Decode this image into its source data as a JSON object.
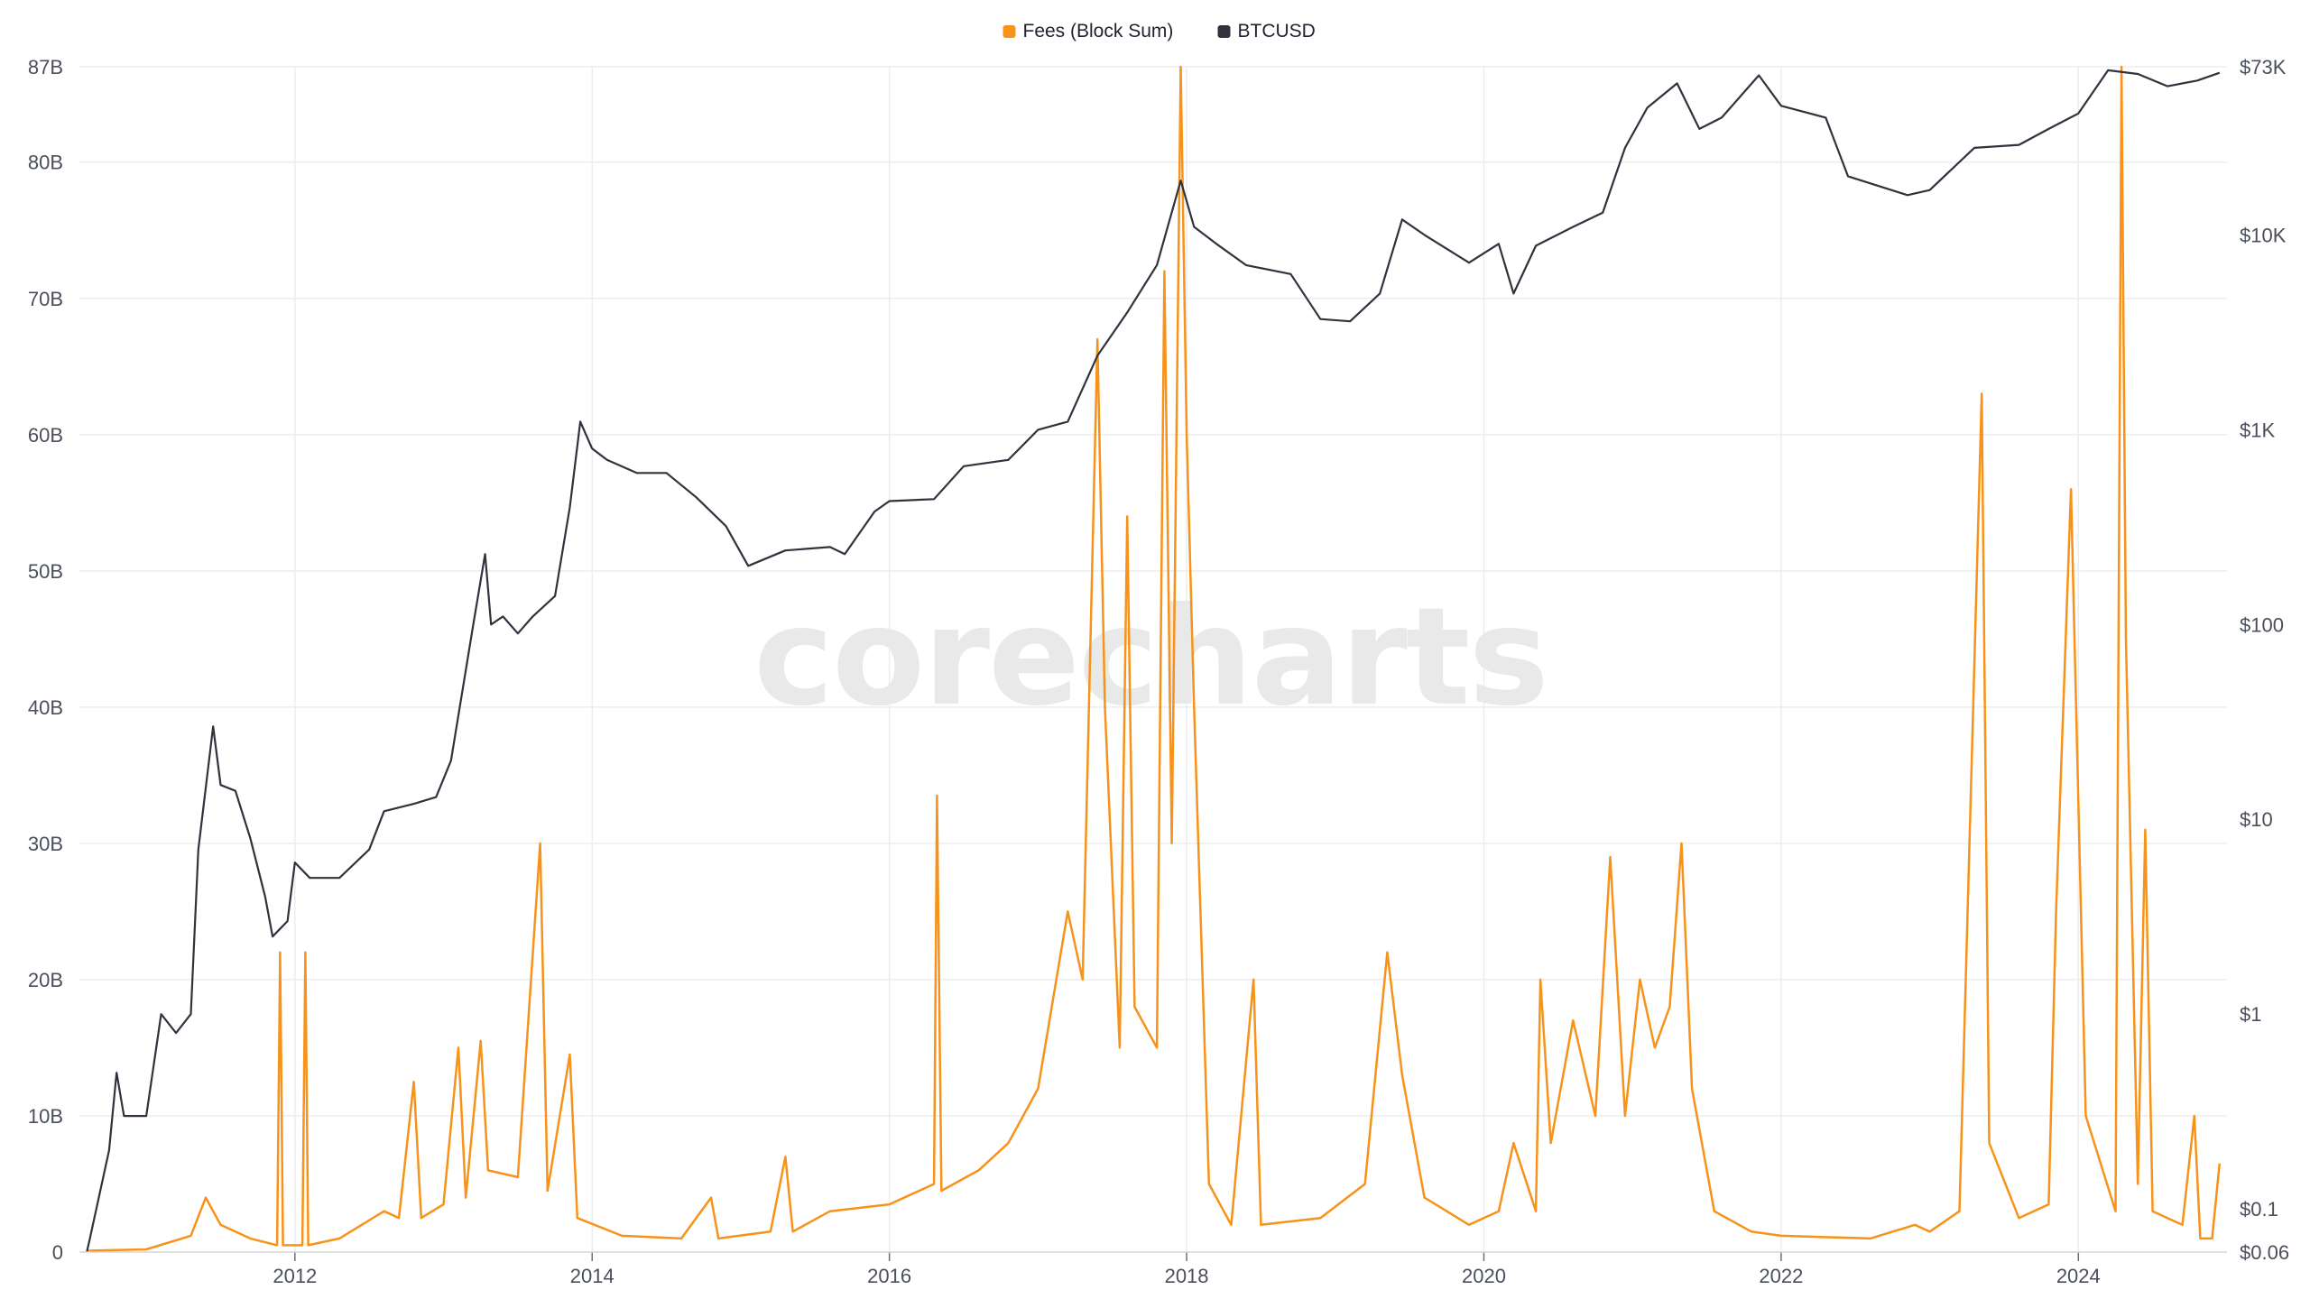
{
  "chart_data": {
    "type": "line",
    "watermark": "corecharts",
    "legend_position": "top-center",
    "x_ticks": [
      "2012",
      "2014",
      "2016",
      "2018",
      "2020",
      "2022",
      "2024"
    ],
    "y_left_ticks": [
      "0",
      "10B",
      "20B",
      "30B",
      "40B",
      "50B",
      "60B",
      "70B",
      "80B",
      "87B"
    ],
    "y_right_ticks": [
      "$0.06",
      "$0.1",
      "$1",
      "$10",
      "$100",
      "$1K",
      "$10K",
      "$73K"
    ],
    "y_left_range": [
      0,
      87000000000
    ],
    "y_right_range": [
      0.06,
      73000
    ],
    "y_right_scale": "log",
    "grid": true,
    "series": [
      {
        "name": "Fees (Block Sum)",
        "axis": "left",
        "color": "#f7931a",
        "points": [
          [
            2010.6,
            0.1
          ],
          [
            2011.0,
            0.2
          ],
          [
            2011.3,
            1.2
          ],
          [
            2011.4,
            4.0
          ],
          [
            2011.5,
            2.0
          ],
          [
            2011.7,
            1.0
          ],
          [
            2011.88,
            0.5
          ],
          [
            2011.9,
            22.0
          ],
          [
            2011.92,
            0.5
          ],
          [
            2012.05,
            0.5
          ],
          [
            2012.07,
            22.0
          ],
          [
            2012.09,
            0.5
          ],
          [
            2012.3,
            1.0
          ],
          [
            2012.6,
            3.0
          ],
          [
            2012.7,
            2.5
          ],
          [
            2012.8,
            12.5
          ],
          [
            2012.85,
            2.5
          ],
          [
            2013.0,
            3.5
          ],
          [
            2013.1,
            15.0
          ],
          [
            2013.15,
            4.0
          ],
          [
            2013.25,
            15.5
          ],
          [
            2013.3,
            6.0
          ],
          [
            2013.5,
            5.5
          ],
          [
            2013.65,
            30.0
          ],
          [
            2013.7,
            4.5
          ],
          [
            2013.85,
            14.5
          ],
          [
            2013.9,
            2.5
          ],
          [
            2014.2,
            1.2
          ],
          [
            2014.6,
            1.0
          ],
          [
            2014.8,
            4.0
          ],
          [
            2014.85,
            1.0
          ],
          [
            2015.2,
            1.5
          ],
          [
            2015.3,
            7.0
          ],
          [
            2015.35,
            1.5
          ],
          [
            2015.6,
            3.0
          ],
          [
            2016.0,
            3.5
          ],
          [
            2016.3,
            5.0
          ],
          [
            2016.32,
            33.5
          ],
          [
            2016.35,
            4.5
          ],
          [
            2016.6,
            6.0
          ],
          [
            2016.8,
            8.0
          ],
          [
            2017.0,
            12.0
          ],
          [
            2017.2,
            25.0
          ],
          [
            2017.3,
            20.0
          ],
          [
            2017.4,
            67.0
          ],
          [
            2017.45,
            40.0
          ],
          [
            2017.55,
            15.0
          ],
          [
            2017.6,
            54.0
          ],
          [
            2017.65,
            18.0
          ],
          [
            2017.8,
            15.0
          ],
          [
            2017.85,
            72.0
          ],
          [
            2017.9,
            30.0
          ],
          [
            2017.96,
            87.0
          ],
          [
            2018.0,
            60.0
          ],
          [
            2018.05,
            40.0
          ],
          [
            2018.15,
            5.0
          ],
          [
            2018.3,
            2.0
          ],
          [
            2018.45,
            20.0
          ],
          [
            2018.5,
            2.0
          ],
          [
            2018.9,
            2.5
          ],
          [
            2019.2,
            5.0
          ],
          [
            2019.35,
            22.0
          ],
          [
            2019.45,
            13.0
          ],
          [
            2019.6,
            4.0
          ],
          [
            2019.9,
            2.0
          ],
          [
            2020.1,
            3.0
          ],
          [
            2020.2,
            8.0
          ],
          [
            2020.35,
            3.0
          ],
          [
            2020.38,
            20.0
          ],
          [
            2020.45,
            8.0
          ],
          [
            2020.6,
            17.0
          ],
          [
            2020.75,
            10.0
          ],
          [
            2020.85,
            29.0
          ],
          [
            2020.95,
            10.0
          ],
          [
            2021.05,
            20.0
          ],
          [
            2021.15,
            15.0
          ],
          [
            2021.25,
            18.0
          ],
          [
            2021.33,
            30.0
          ],
          [
            2021.4,
            12.0
          ],
          [
            2021.55,
            3.0
          ],
          [
            2021.8,
            1.5
          ],
          [
            2022.0,
            1.2
          ],
          [
            2022.6,
            1.0
          ],
          [
            2022.9,
            2.0
          ],
          [
            2023.0,
            1.5
          ],
          [
            2023.2,
            3.0
          ],
          [
            2023.35,
            63.0
          ],
          [
            2023.4,
            8.0
          ],
          [
            2023.6,
            2.5
          ],
          [
            2023.8,
            3.5
          ],
          [
            2023.85,
            25.0
          ],
          [
            2023.95,
            56.0
          ],
          [
            2024.05,
            10.0
          ],
          [
            2024.25,
            3.0
          ],
          [
            2024.29,
            87.0
          ],
          [
            2024.32,
            45.0
          ],
          [
            2024.4,
            5.0
          ],
          [
            2024.45,
            31.0
          ],
          [
            2024.5,
            3.0
          ],
          [
            2024.7,
            2.0
          ],
          [
            2024.78,
            10.0
          ],
          [
            2024.82,
            1.0
          ],
          [
            2024.9,
            1.0
          ],
          [
            2024.95,
            6.5
          ]
        ]
      },
      {
        "name": "BTCUSD",
        "axis": "right",
        "color": "#30333d",
        "points": [
          [
            2010.6,
            0.06
          ],
          [
            2010.62,
            0.07
          ],
          [
            2010.75,
            0.2
          ],
          [
            2010.8,
            0.5
          ],
          [
            2010.85,
            0.3
          ],
          [
            2011.0,
            0.3
          ],
          [
            2011.1,
            1.0
          ],
          [
            2011.2,
            0.8
          ],
          [
            2011.3,
            1.0
          ],
          [
            2011.35,
            7.0
          ],
          [
            2011.45,
            30.0
          ],
          [
            2011.5,
            15.0
          ],
          [
            2011.6,
            14.0
          ],
          [
            2011.7,
            8.0
          ],
          [
            2011.8,
            4.0
          ],
          [
            2011.85,
            2.5
          ],
          [
            2011.95,
            3.0
          ],
          [
            2012.0,
            6.0
          ],
          [
            2012.1,
            5.0
          ],
          [
            2012.3,
            5.0
          ],
          [
            2012.5,
            7.0
          ],
          [
            2012.6,
            11.0
          ],
          [
            2012.8,
            12.0
          ],
          [
            2012.95,
            13.0
          ],
          [
            2013.05,
            20.0
          ],
          [
            2013.2,
            100.0
          ],
          [
            2013.28,
            230.0
          ],
          [
            2013.32,
            100.0
          ],
          [
            2013.4,
            110.0
          ],
          [
            2013.5,
            90.0
          ],
          [
            2013.6,
            110.0
          ],
          [
            2013.75,
            140.0
          ],
          [
            2013.85,
            400.0
          ],
          [
            2013.92,
            1100.0
          ],
          [
            2014.0,
            800.0
          ],
          [
            2014.1,
            700.0
          ],
          [
            2014.3,
            600.0
          ],
          [
            2014.5,
            600.0
          ],
          [
            2014.7,
            450.0
          ],
          [
            2014.9,
            320.0
          ],
          [
            2015.05,
            200.0
          ],
          [
            2015.3,
            240.0
          ],
          [
            2015.6,
            250.0
          ],
          [
            2015.7,
            230.0
          ],
          [
            2015.9,
            380.0
          ],
          [
            2016.0,
            430.0
          ],
          [
            2016.3,
            440.0
          ],
          [
            2016.5,
            650.0
          ],
          [
            2016.8,
            700.0
          ],
          [
            2017.0,
            1000.0
          ],
          [
            2017.2,
            1100.0
          ],
          [
            2017.4,
            2400.0
          ],
          [
            2017.6,
            4000.0
          ],
          [
            2017.8,
            7000.0
          ],
          [
            2017.96,
            19000.0
          ],
          [
            2018.05,
            11000.0
          ],
          [
            2018.2,
            9000.0
          ],
          [
            2018.4,
            7000.0
          ],
          [
            2018.7,
            6300.0
          ],
          [
            2018.9,
            3700.0
          ],
          [
            2019.1,
            3600.0
          ],
          [
            2019.3,
            5000.0
          ],
          [
            2019.45,
            12000.0
          ],
          [
            2019.6,
            10000.0
          ],
          [
            2019.9,
            7200.0
          ],
          [
            2020.1,
            9000.0
          ],
          [
            2020.2,
            5000.0
          ],
          [
            2020.35,
            8800.0
          ],
          [
            2020.6,
            11000.0
          ],
          [
            2020.8,
            13000.0
          ],
          [
            2020.95,
            28000.0
          ],
          [
            2021.1,
            45000.0
          ],
          [
            2021.3,
            60000.0
          ],
          [
            2021.45,
            35000.0
          ],
          [
            2021.6,
            40000.0
          ],
          [
            2021.85,
            66000.0
          ],
          [
            2022.0,
            46000.0
          ],
          [
            2022.3,
            40000.0
          ],
          [
            2022.45,
            20000.0
          ],
          [
            2022.85,
            16000.0
          ],
          [
            2023.0,
            17000.0
          ],
          [
            2023.3,
            28000.0
          ],
          [
            2023.6,
            29000.0
          ],
          [
            2023.8,
            35000.0
          ],
          [
            2024.0,
            42000.0
          ],
          [
            2024.2,
            70000.0
          ],
          [
            2024.4,
            67000.0
          ],
          [
            2024.6,
            58000.0
          ],
          [
            2024.8,
            62000.0
          ],
          [
            2024.95,
            68000.0
          ]
        ]
      }
    ]
  }
}
